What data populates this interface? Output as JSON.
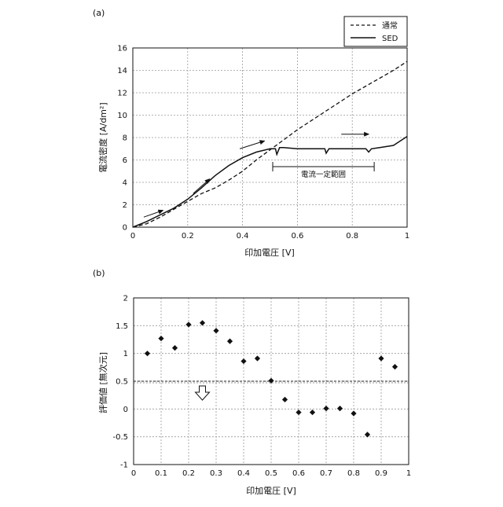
{
  "chart_data": [
    {
      "panel_label": "(a)",
      "type": "line",
      "xlabel": "印加電圧 [V]",
      "ylabel": "電流密度 [A/dm²]",
      "xlim": [
        0,
        1
      ],
      "ylim": [
        0,
        16
      ],
      "xticks": [
        0,
        0.2,
        0.4,
        0.6,
        0.8,
        1
      ],
      "xtick_labels": [
        "0",
        "0.2",
        "0.4",
        "0.6",
        "0.8",
        "1"
      ],
      "yticks": [
        0,
        2,
        4,
        6,
        8,
        10,
        12,
        14,
        16
      ],
      "ytick_labels": [
        "0",
        "2",
        "4",
        "6",
        "8",
        "10",
        "12",
        "14",
        "16"
      ],
      "grid": true,
      "legend_position": "top-right",
      "series": [
        {
          "name": "通常",
          "style": "dashed",
          "color": "#111111",
          "x": [
            0,
            0.05,
            0.1,
            0.15,
            0.2,
            0.25,
            0.3,
            0.35,
            0.4,
            0.45,
            0.5,
            0.55,
            0.6,
            0.65,
            0.7,
            0.75,
            0.8,
            0.85,
            0.9,
            0.95,
            1.0
          ],
          "y": [
            0,
            0.3,
            0.9,
            1.6,
            2.3,
            3.0,
            3.5,
            4.2,
            5.0,
            6.0,
            6.9,
            7.8,
            8.7,
            9.5,
            10.3,
            11.1,
            11.9,
            12.6,
            13.3,
            14.0,
            14.8
          ]
        },
        {
          "name": "SED",
          "style": "solid",
          "color": "#111111",
          "x": [
            0,
            0.05,
            0.1,
            0.15,
            0.2,
            0.25,
            0.3,
            0.35,
            0.4,
            0.45,
            0.5,
            0.52,
            0.525,
            0.535,
            0.55,
            0.6,
            0.65,
            0.7,
            0.705,
            0.715,
            0.75,
            0.8,
            0.85,
            0.86,
            0.87,
            0.9,
            0.95,
            1.0
          ],
          "y": [
            0,
            0.5,
            1.1,
            1.7,
            2.5,
            3.5,
            4.6,
            5.5,
            6.2,
            6.7,
            7.0,
            7.0,
            6.5,
            7.1,
            7.1,
            7.0,
            7.0,
            7.0,
            6.6,
            7.0,
            7.0,
            7.0,
            7.0,
            6.7,
            7.0,
            7.1,
            7.3,
            8.1
          ]
        }
      ],
      "annotations": {
        "range_label": "電流一定範囲",
        "range_x": [
          0.51,
          0.88
        ],
        "range_y": 5.4,
        "arrows": [
          {
            "x1": 0.04,
            "y1": 0.9,
            "x2": 0.11,
            "y2": 1.5
          },
          {
            "x1": 0.22,
            "y1": 3.0,
            "x2": 0.28,
            "y2": 4.3
          },
          {
            "x1": 0.39,
            "y1": 7.0,
            "x2": 0.48,
            "y2": 7.7
          },
          {
            "x1": 0.76,
            "y1": 8.3,
            "x2": 0.86,
            "y2": 8.3
          }
        ]
      }
    },
    {
      "panel_label": "(b)",
      "type": "scatter",
      "xlabel": "印加電圧 [V]",
      "ylabel": "評価値 [無次元]",
      "xlim": [
        0,
        1
      ],
      "ylim": [
        -1,
        2
      ],
      "xticks": [
        0,
        0.1,
        0.2,
        0.3,
        0.4,
        0.5,
        0.6,
        0.7,
        0.8,
        0.9,
        1
      ],
      "xtick_labels": [
        "0",
        "0.1",
        "0.2",
        "0.3",
        "0.4",
        "0.5",
        "0.6",
        "0.7",
        "0.8",
        "0.9",
        "1"
      ],
      "yticks": [
        -1,
        -0.5,
        0,
        0.5,
        1,
        1.5,
        2
      ],
      "ytick_labels": [
        "-1",
        "-0.5",
        "0",
        "0.5",
        "1",
        "1.5",
        "2"
      ],
      "grid": true,
      "marker": "diamond",
      "x": [
        0.05,
        0.1,
        0.15,
        0.2,
        0.25,
        0.3,
        0.35,
        0.4,
        0.45,
        0.5,
        0.55,
        0.6,
        0.65,
        0.7,
        0.75,
        0.8,
        0.85,
        0.9,
        0.95
      ],
      "y": [
        1.0,
        1.27,
        1.1,
        1.52,
        1.55,
        1.41,
        1.22,
        0.86,
        0.91,
        0.51,
        0.17,
        -0.06,
        -0.06,
        0.01,
        0.01,
        -0.08,
        -0.46,
        0.91,
        0.76
      ],
      "threshold_y": 0.5,
      "threshold_style": "dashed",
      "down_arrow_x": 0.25
    }
  ]
}
